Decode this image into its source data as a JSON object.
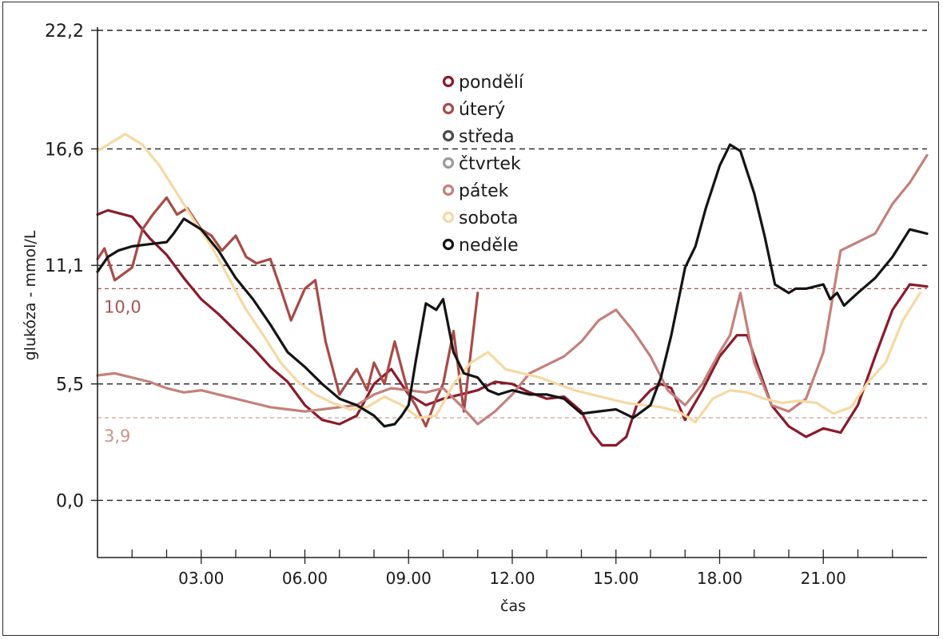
{
  "chart_data": {
    "type": "line",
    "title": "",
    "xlabel": "čas",
    "ylabel": "glukóza - mmol/L",
    "xlim": [
      0,
      24
    ],
    "ylim": [
      -2.7,
      22.2
    ],
    "x_ticks": [
      {
        "value": 3,
        "label": "03.00"
      },
      {
        "value": 6,
        "label": "06.00"
      },
      {
        "value": 9,
        "label": "09.00"
      },
      {
        "value": 12,
        "label": "12.00"
      },
      {
        "value": 15,
        "label": "15.00"
      },
      {
        "value": 18,
        "label": "18.00"
      },
      {
        "value": 21,
        "label": "21.00"
      }
    ],
    "x_minor_ticks": [
      1,
      2,
      4,
      5,
      7,
      8,
      10,
      11,
      13,
      14,
      16,
      17,
      19,
      20,
      22,
      23
    ],
    "y_ticks": [
      {
        "value": 0.0,
        "label": "0,0"
      },
      {
        "value": 5.5,
        "label": "5,5"
      },
      {
        "value": 11.1,
        "label": "11,1"
      },
      {
        "value": 16.6,
        "label": "16,6"
      },
      {
        "value": 22.2,
        "label": "22,2"
      }
    ],
    "grid": "horizontal-dashed",
    "legend_position": "top-center",
    "reference_lines": [
      {
        "value": 10.0,
        "label": "10,0",
        "color": "#a8544e"
      },
      {
        "value": 3.9,
        "label": "3,9",
        "color": "#c99488"
      }
    ],
    "series": [
      {
        "name": "pondělí",
        "color": "#8b1a2b",
        "x": [
          0,
          0.3,
          1,
          1.5,
          2,
          2.5,
          3,
          3.5,
          4,
          4.5,
          5,
          5.5,
          6,
          6.5,
          7,
          7.5,
          8,
          8.5,
          9,
          9.5,
          10,
          10.5,
          11,
          11.5,
          12,
          12.5,
          13,
          13.5,
          14,
          14.3,
          14.6,
          15,
          15.3,
          15.6,
          16,
          16.3,
          16.6,
          17,
          17.5,
          18,
          18.5,
          18.8,
          19,
          19.5,
          20,
          20.5,
          21,
          21.5,
          22,
          22.5,
          23,
          23.5,
          24
        ],
        "values": [
          13.5,
          13.7,
          13.4,
          12.4,
          11.6,
          10.5,
          9.5,
          8.8,
          8.0,
          7.2,
          6.3,
          5.6,
          4.5,
          3.8,
          3.6,
          4.0,
          5.5,
          6.2,
          5.0,
          4.5,
          4.8,
          5.0,
          5.2,
          5.6,
          5.5,
          5.1,
          4.8,
          4.9,
          4.2,
          3.2,
          2.6,
          2.6,
          3.0,
          4.5,
          5.2,
          5.5,
          5.3,
          3.8,
          5.2,
          6.8,
          7.8,
          7.8,
          6.8,
          4.5,
          3.5,
          3.0,
          3.4,
          3.2,
          4.5,
          6.8,
          9.0,
          10.2,
          10.1
        ]
      },
      {
        "name": "úterý",
        "color": "#a84a47",
        "x": [
          0,
          0.2,
          0.5,
          1,
          1.3,
          1.6,
          2,
          2.3,
          2.6,
          3,
          3.3,
          3.6,
          4,
          4.3,
          4.6,
          5,
          5.3,
          5.6,
          6,
          6.3,
          6.6,
          7,
          7.2,
          7.5,
          7.8,
          8,
          8.3,
          8.6,
          9,
          9.2,
          9.5,
          9.8,
          10,
          10.3,
          10.6,
          11
        ],
        "values": [
          11.4,
          11.9,
          10.4,
          11.0,
          12.8,
          13.5,
          14.3,
          13.5,
          13.8,
          12.8,
          12.5,
          11.8,
          12.5,
          11.5,
          11.2,
          11.4,
          10.0,
          8.5,
          10.0,
          10.4,
          7.5,
          5.0,
          5.5,
          6.2,
          5.2,
          6.5,
          5.5,
          7.5,
          5.0,
          4.5,
          3.5,
          4.8,
          5.5,
          8.0,
          4.2,
          9.8
        ]
      },
      {
        "name": "středa",
        "color": "#4a4a4a",
        "x": [],
        "values": []
      },
      {
        "name": "čtvrtek",
        "color": "#9a9a9a",
        "x": [],
        "values": []
      },
      {
        "name": "pátek",
        "color": "#c4807a",
        "x": [
          0,
          0.5,
          1,
          1.5,
          2,
          2.5,
          3,
          3.5,
          4,
          4.5,
          5,
          5.5,
          6,
          6.5,
          7,
          7.5,
          8,
          8.5,
          9,
          9.5,
          10,
          10.5,
          11,
          11.5,
          12,
          12.5,
          13,
          13.5,
          14,
          14.5,
          15,
          15.5,
          16,
          16.5,
          17,
          17.5,
          18,
          18.3,
          18.6,
          19,
          19.5,
          20,
          20.5,
          21,
          21.5,
          22,
          22.5,
          23,
          23.5,
          24
        ],
        "values": [
          5.9,
          6.0,
          5.8,
          5.6,
          5.3,
          5.1,
          5.2,
          5.0,
          4.8,
          4.6,
          4.4,
          4.3,
          4.2,
          4.3,
          4.4,
          4.5,
          5.0,
          5.3,
          5.2,
          5.1,
          5.3,
          4.5,
          3.6,
          4.2,
          5.0,
          6.0,
          6.4,
          6.8,
          7.5,
          8.5,
          9.0,
          8.0,
          6.8,
          5.2,
          4.5,
          5.5,
          7.0,
          7.8,
          9.8,
          6.5,
          4.5,
          4.2,
          4.8,
          7.0,
          11.8,
          12.2,
          12.6,
          14.0,
          15.0,
          16.3
        ]
      },
      {
        "name": "sobota",
        "color": "#f5d9a2",
        "x": [
          0,
          0.3,
          0.8,
          1.3,
          1.8,
          2.3,
          2.8,
          3.3,
          3.8,
          4.3,
          4.8,
          5.3,
          5.8,
          6.3,
          6.8,
          7.3,
          7.8,
          8.3,
          8.8,
          9.3,
          9.8,
          10.3,
          10.8,
          11.3,
          11.8,
          12.3,
          12.8,
          13.3,
          13.8,
          14.3,
          14.8,
          15.3,
          15.8,
          16.3,
          16.8,
          17.3,
          17.8,
          18.3,
          18.8,
          19.3,
          19.8,
          20.3,
          20.8,
          21.3,
          21.8,
          22.3,
          22.8,
          23.3,
          23.8
        ],
        "values": [
          16.5,
          16.8,
          17.3,
          16.8,
          15.8,
          14.5,
          13.2,
          12.0,
          10.5,
          9.0,
          7.8,
          6.5,
          5.6,
          5.0,
          4.6,
          4.3,
          4.4,
          4.9,
          4.5,
          3.9,
          4.0,
          5.5,
          6.5,
          7.0,
          6.2,
          6.0,
          5.8,
          5.5,
          5.2,
          5.0,
          4.8,
          4.6,
          4.5,
          4.4,
          4.2,
          3.7,
          4.8,
          5.2,
          5.1,
          4.8,
          4.6,
          4.7,
          4.6,
          4.1,
          4.4,
          5.6,
          6.5,
          8.5,
          9.8
        ]
      },
      {
        "name": "neděle",
        "color": "#141414",
        "x": [
          0,
          0.3,
          0.6,
          1,
          1.5,
          2,
          2.2,
          2.5,
          3,
          3.5,
          4,
          4.5,
          5,
          5.5,
          6,
          6.5,
          7,
          7.5,
          8,
          8.3,
          8.6,
          8.8,
          9,
          9.2,
          9.5,
          9.8,
          10,
          10.3,
          10.6,
          11,
          11.3,
          11.6,
          12,
          12.5,
          13,
          13.5,
          14,
          14.5,
          15,
          15.5,
          16,
          16.3,
          16.6,
          17,
          17.3,
          17.6,
          18,
          18.3,
          18.6,
          19,
          19.3,
          19.6,
          20,
          20.2,
          20.5,
          21,
          21.2,
          21.4,
          21.6,
          21.8,
          22,
          22.5,
          23,
          23.5,
          24
        ],
        "values": [
          10.8,
          11.5,
          11.8,
          12.0,
          12.1,
          12.2,
          12.6,
          13.3,
          12.8,
          11.8,
          10.5,
          9.5,
          8.3,
          7.0,
          6.3,
          5.5,
          4.8,
          4.5,
          4.0,
          3.5,
          3.6,
          4.0,
          4.5,
          6.5,
          9.3,
          9.0,
          9.5,
          7.0,
          6.0,
          5.8,
          5.2,
          5.0,
          5.2,
          5.0,
          5.0,
          4.8,
          4.1,
          4.2,
          4.3,
          3.9,
          4.5,
          5.8,
          7.8,
          11.0,
          12.0,
          13.8,
          15.8,
          16.8,
          16.5,
          14.5,
          12.5,
          10.2,
          9.8,
          10.0,
          10.0,
          10.2,
          9.5,
          9.8,
          9.2,
          9.5,
          9.8,
          10.5,
          11.5,
          12.8,
          12.6
        ]
      }
    ]
  }
}
